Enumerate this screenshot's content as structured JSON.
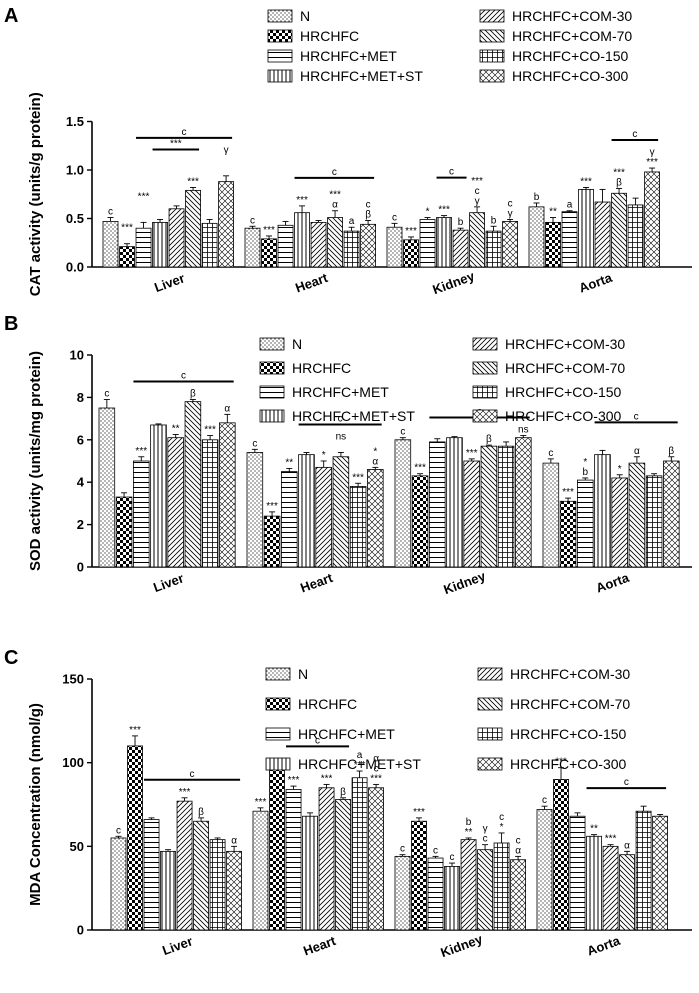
{
  "series_names": [
    "N",
    "HRCHFC",
    "HRCHFC+MET",
    "HRCHFC+MET+ST",
    "HRCHFC+COM-30",
    "HRCHFC+COM-70",
    "HRCHFC+CO-150",
    "HRCHFC+CO-300"
  ],
  "chart_data": [
    {
      "panel": "A",
      "type": "bar",
      "ylabel": "CAT activity (units/g protein)",
      "ylim": [
        0,
        1.5
      ],
      "yticks": [
        0.0,
        0.5,
        1.0,
        1.5
      ],
      "categories": [
        "Liver",
        "Heart",
        "Kidney",
        "Aorta"
      ],
      "series": [
        {
          "name": "N",
          "values": [
            0.47,
            0.4,
            0.41,
            0.62
          ],
          "errors": [
            0.04,
            0.02,
            0.04,
            0.04
          ]
        },
        {
          "name": "HRCHFC",
          "values": [
            0.21,
            0.29,
            0.28,
            0.46
          ],
          "errors": [
            0.03,
            0.03,
            0.03,
            0.05
          ]
        },
        {
          "name": "HRCHFC+MET",
          "values": [
            0.4,
            0.43,
            0.49,
            0.57
          ],
          "errors": [
            0.06,
            0.04,
            0.02,
            0.01
          ]
        },
        {
          "name": "HRCHFC+MET+ST",
          "values": [
            0.46,
            0.56,
            0.51,
            0.8
          ],
          "errors": [
            0.03,
            0.07,
            0.02,
            0.02
          ]
        },
        {
          "name": "HRCHFC+COM-30",
          "values": [
            0.6,
            0.46,
            0.38,
            0.67
          ],
          "errors": [
            0.03,
            0.02,
            0.02,
            0.13
          ]
        },
        {
          "name": "HRCHFC+COM-70",
          "values": [
            0.79,
            0.51,
            0.56,
            0.76
          ],
          "errors": [
            0.03,
            0.07,
            0.06,
            0.05
          ]
        },
        {
          "name": "HRCHFC+CO-150",
          "values": [
            0.45,
            0.37,
            0.37,
            0.64
          ],
          "errors": [
            0.04,
            0.04,
            0.05,
            0.07
          ]
        },
        {
          "name": "HRCHFC+CO-300",
          "values": [
            0.88,
            0.44,
            0.47,
            0.98
          ],
          "errors": [
            0.06,
            0.04,
            0.02,
            0.04
          ]
        }
      ],
      "annotations": [
        [
          [
            "c",
            "",
            "",
            "",
            "",
            "***",
            "",
            ""
          ],
          [
            "",
            "***",
            "",
            "",
            "",
            " ",
            "",
            ""
          ],
          [
            "",
            "",
            "***",
            "",
            "",
            "",
            "",
            "γ"
          ]
        ],
        [
          [
            "c",
            "***",
            "",
            "***",
            "",
            "α",
            "a",
            "β"
          ],
          [
            "",
            "",
            "",
            "",
            "",
            "***",
            "",
            "c"
          ]
        ],
        [
          [
            "c",
            "***",
            "*",
            "***",
            "b",
            "γ",
            "b",
            "γ"
          ],
          [
            "",
            "",
            "",
            "",
            "",
            "c",
            "",
            "c"
          ],
          [
            "",
            "",
            "",
            "",
            "",
            "***",
            "",
            ""
          ]
        ],
        [
          [
            "b",
            "**",
            "a",
            "***",
            "",
            "β",
            "",
            "***"
          ],
          [
            "",
            "",
            "",
            "",
            "",
            "***",
            "",
            "γ"
          ]
        ]
      ],
      "sig_lines": [
        {
          "group": 0,
          "from": 2,
          "to": 7,
          "label": "c"
        },
        {
          "group": 0,
          "from": 3,
          "to": 5,
          "label": "***"
        },
        {
          "group": 1,
          "from": 3,
          "to": 7,
          "label": "c"
        },
        {
          "group": 2,
          "from": 3,
          "to": 4,
          "label": "c"
        },
        {
          "group": 3,
          "from": 5,
          "to": 7,
          "label": "c"
        }
      ]
    },
    {
      "panel": "B",
      "type": "bar",
      "ylabel": "SOD activity (units/mg protein)",
      "ylim": [
        0,
        10
      ],
      "yticks": [
        0,
        2,
        4,
        6,
        8,
        10
      ],
      "categories": [
        "Liver",
        "Heart",
        "Kidney",
        "Aorta"
      ],
      "series": [
        {
          "name": "N",
          "values": [
            7.5,
            5.4,
            6.0,
            4.9
          ],
          "errors": [
            0.4,
            0.15,
            0.1,
            0.2
          ]
        },
        {
          "name": "HRCHFC",
          "values": [
            3.3,
            2.4,
            4.3,
            3.1
          ],
          "errors": [
            0.2,
            0.2,
            0.1,
            0.15
          ]
        },
        {
          "name": "HRCHFC+MET",
          "values": [
            5.0,
            4.5,
            5.9,
            4.1
          ],
          "errors": [
            0.2,
            0.15,
            0.15,
            0.1
          ]
        },
        {
          "name": "HRCHFC+MET+ST",
          "values": [
            6.7,
            5.3,
            6.1,
            5.3
          ],
          "errors": [
            0.05,
            0.1,
            0.05,
            0.2
          ]
        },
        {
          "name": "HRCHFC+COM-30",
          "values": [
            6.1,
            4.7,
            5.0,
            4.2
          ],
          "errors": [
            0.15,
            0.3,
            0.1,
            0.15
          ]
        },
        {
          "name": "HRCHFC+COM-70",
          "values": [
            7.8,
            5.2,
            5.7,
            4.9
          ],
          "errors": [
            0.1,
            0.2,
            0.05,
            0.3
          ]
        },
        {
          "name": "HRCHFC+CO-150",
          "values": [
            6.0,
            3.8,
            5.7,
            4.3
          ],
          "errors": [
            0.2,
            0.15,
            0.2,
            0.1
          ]
        },
        {
          "name": "HRCHFC+CO-300",
          "values": [
            6.8,
            4.6,
            6.1,
            5.0
          ],
          "errors": [
            0.4,
            0.1,
            0.1,
            0.2
          ]
        }
      ],
      "annotations": [
        [
          [
            "c",
            "",
            "***",
            "",
            "**",
            "β",
            "***",
            "α"
          ]
        ],
        [
          [
            "c",
            "***",
            "**",
            "",
            "*",
            "",
            "***",
            "α"
          ],
          [
            "",
            "",
            "",
            "",
            "",
            "ns",
            "",
            "*"
          ]
        ],
        [
          [
            "c",
            "***",
            "",
            "",
            "***",
            "β",
            "",
            "ns"
          ]
        ],
        [
          [
            "c",
            "***",
            "b",
            "",
            "*",
            "α",
            "",
            "β"
          ],
          [
            "",
            "",
            "*",
            "",
            "",
            "",
            "",
            ""
          ]
        ]
      ],
      "sig_lines": [
        {
          "group": 0,
          "from": 2,
          "to": 7,
          "label": "c"
        },
        {
          "group": 1,
          "from": 3,
          "to": 7,
          "label": "c"
        },
        {
          "group": 2,
          "from": 2,
          "to": 7,
          "label": "c"
        },
        {
          "group": 3,
          "from": 3,
          "to": 7,
          "label": "c"
        }
      ]
    },
    {
      "panel": "C",
      "type": "bar",
      "ylabel": "MDA Concentration (nmol/g)",
      "ylim": [
        0,
        150
      ],
      "yticks": [
        0,
        50,
        100,
        150
      ],
      "categories": [
        "Liver",
        "Heart",
        "Kidney",
        "Aorta"
      ],
      "series": [
        {
          "name": "N",
          "values": [
            55,
            71,
            44,
            72
          ],
          "errors": [
            1,
            2,
            1,
            2
          ]
        },
        {
          "name": "HRCHFC",
          "values": [
            110,
            98,
            65,
            90
          ],
          "errors": [
            6,
            2,
            2,
            7
          ]
        },
        {
          "name": "HRCHFC+MET",
          "values": [
            66,
            84,
            43,
            68
          ],
          "errors": [
            1,
            2,
            1,
            2
          ]
        },
        {
          "name": "HRCHFC+MET+ST",
          "values": [
            47,
            68,
            38,
            56
          ],
          "errors": [
            1,
            2,
            2,
            1
          ]
        },
        {
          "name": "HRCHFC+COM-30",
          "values": [
            77,
            85,
            54,
            50
          ],
          "errors": [
            2,
            2,
            1,
            1
          ]
        },
        {
          "name": "HRCHFC+COM-70",
          "values": [
            65,
            78,
            48,
            45
          ],
          "errors": [
            2,
            1,
            3,
            2
          ]
        },
        {
          "name": "HRCHFC+CO-150",
          "values": [
            54,
            91,
            52,
            71
          ],
          "errors": [
            1,
            4,
            6,
            3
          ]
        },
        {
          "name": "HRCHFC+CO-300",
          "values": [
            47,
            85,
            42,
            68
          ],
          "errors": [
            3,
            2,
            2,
            1
          ]
        }
      ],
      "annotations": [
        [
          [
            "c",
            "***",
            "",
            "",
            "***",
            "β",
            "",
            "α"
          ]
        ],
        [
          [
            "***",
            "",
            "***",
            "",
            "***",
            "β",
            "***",
            "***"
          ],
          [
            "",
            "",
            "",
            "",
            "",
            "",
            "a",
            "c"
          ],
          [
            "",
            "",
            "",
            "",
            "",
            "",
            "",
            "α"
          ]
        ],
        [
          [
            "c",
            "***",
            "c",
            "c",
            "**",
            "c",
            "*",
            "α"
          ],
          [
            "",
            "",
            "",
            "",
            "b",
            "γ",
            "c",
            "c"
          ]
        ],
        [
          [
            "c",
            "***",
            "",
            "**",
            "***",
            "α",
            "",
            ""
          ]
        ]
      ],
      "sig_lines": [
        {
          "group": 0,
          "from": 2,
          "to": 7,
          "label": "c"
        },
        {
          "group": 1,
          "from": 2,
          "to": 5,
          "label": "c"
        },
        {
          "group": 3,
          "from": 3,
          "to": 7,
          "label": "c"
        }
      ]
    }
  ]
}
